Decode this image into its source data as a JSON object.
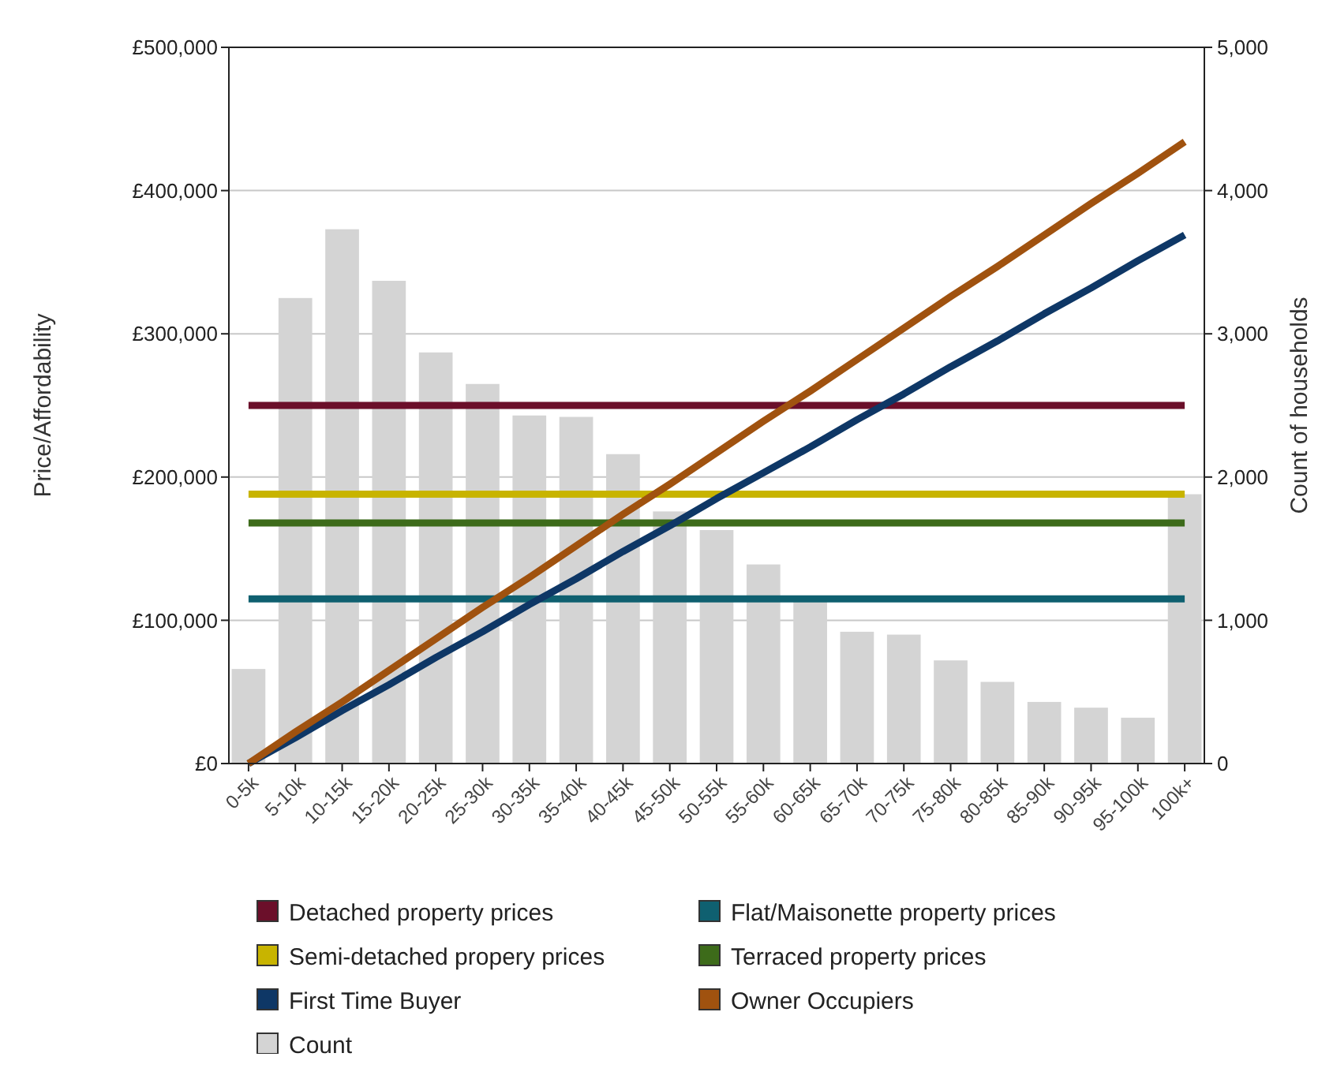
{
  "chart_data": {
    "type": "bar",
    "ylabel": "Price/Affordability",
    "y2label": "Count of households",
    "categories": [
      "0-5k",
      "5-10k",
      "10-15k",
      "15-20k",
      "20-25k",
      "25-30k",
      "30-35k",
      "35-40k",
      "40-45k",
      "45-50k",
      "50-55k",
      "55-60k",
      "60-65k",
      "65-70k",
      "70-75k",
      "75-80k",
      "80-85k",
      "85-90k",
      "90-95k",
      "95-100k",
      "100k+"
    ],
    "series": [
      {
        "name": "Detached property prices",
        "type": "line",
        "color": "#6b0f2a",
        "values": [
          250000,
          250000,
          250000,
          250000,
          250000,
          250000,
          250000,
          250000,
          250000,
          250000,
          250000,
          250000,
          250000,
          250000,
          250000,
          250000,
          250000,
          250000,
          250000,
          250000,
          250000
        ]
      },
      {
        "name": "Flat/Maisonette property prices",
        "type": "line",
        "color": "#0f6070",
        "values": [
          115000,
          115000,
          115000,
          115000,
          115000,
          115000,
          115000,
          115000,
          115000,
          115000,
          115000,
          115000,
          115000,
          115000,
          115000,
          115000,
          115000,
          115000,
          115000,
          115000,
          115000
        ]
      },
      {
        "name": "Semi-detached propery prices",
        "type": "line",
        "color": "#c8b400",
        "values": [
          188000,
          188000,
          188000,
          188000,
          188000,
          188000,
          188000,
          188000,
          188000,
          188000,
          188000,
          188000,
          188000,
          188000,
          188000,
          188000,
          188000,
          188000,
          188000,
          188000,
          188000
        ]
      },
      {
        "name": "Terraced property prices",
        "type": "line",
        "color": "#3d6b1a",
        "values": [
          168000,
          168000,
          168000,
          168000,
          168000,
          168000,
          168000,
          168000,
          168000,
          168000,
          168000,
          168000,
          168000,
          168000,
          168000,
          168000,
          168000,
          168000,
          168000,
          168000,
          168000
        ]
      },
      {
        "name": "First Time Buyer",
        "type": "line",
        "color": "#0e3766",
        "values": [
          0,
          18000,
          37000,
          55000,
          74000,
          92000,
          111000,
          129000,
          148000,
          166000,
          185000,
          203000,
          221000,
          240000,
          258000,
          277000,
          295000,
          314000,
          332000,
          351000,
          369000
        ]
      },
      {
        "name": "Owner Occupiers",
        "type": "line",
        "color": "#a0520f",
        "values": [
          0,
          22000,
          43000,
          65000,
          87000,
          109000,
          130000,
          152000,
          174000,
          195000,
          217000,
          239000,
          260000,
          282000,
          304000,
          326000,
          347000,
          369000,
          391000,
          412000,
          434000
        ]
      },
      {
        "name": "Count",
        "axis": "y2",
        "color": "#d4d4d4",
        "values": [
          660,
          3250,
          3730,
          3370,
          2870,
          2650,
          2430,
          2420,
          2160,
          1760,
          1630,
          1390,
          1150,
          920,
          900,
          720,
          570,
          430,
          390,
          320,
          1880
        ]
      }
    ],
    "ylim": [
      0,
      500000
    ],
    "yticks": [
      {
        "value": 0,
        "label": "£0"
      },
      {
        "value": 100000,
        "label": "£100,000"
      },
      {
        "value": 200000,
        "label": "£200,000"
      },
      {
        "value": 300000,
        "label": "£300,000"
      },
      {
        "value": 400000,
        "label": "£400,000"
      },
      {
        "value": 500000,
        "label": "£500,000"
      }
    ],
    "y2lim": [
      0,
      5000
    ],
    "y2ticks": [
      0,
      {
        "value": 1000,
        "label": "1,000"
      },
      {
        "value": 2000,
        "label": "2,000"
      },
      {
        "value": 3000,
        "label": "3,000"
      },
      {
        "value": 4000,
        "label": "4,000"
      },
      {
        "value": 5000,
        "label": "5,000"
      }
    ],
    "grid": "y",
    "legend": "bottom",
    "marker": "none",
    "line_style": "solid"
  }
}
